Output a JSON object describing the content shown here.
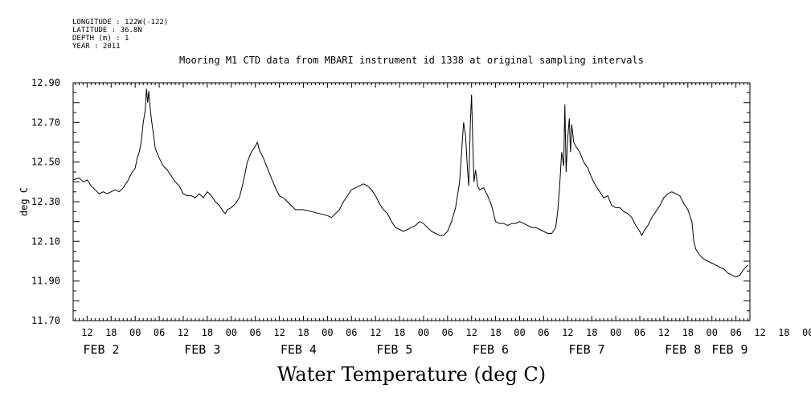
{
  "chart_data": {
    "type": "line",
    "title": "Mooring M1 CTD data from MBARI instrument id 1338 at original sampling intervals",
    "xlabel": "Water Temperature (deg C)",
    "ylabel": "deg C",
    "metadata_lines": [
      "LONGITUDE : 122W(-122)",
      "LATITUDE : 36.8N",
      "DEPTH (m) : 1",
      "YEAR : 2011"
    ],
    "x_unit": "hours since FEB 2 00:00, 2011",
    "xlim": [
      -15.5,
      153.5
    ],
    "ylim": [
      11.7,
      12.9
    ],
    "y_ticks": [
      "12.90",
      "12.70",
      "12.50",
      "12.30",
      "12.10",
      "11.90",
      "11.70"
    ],
    "hour_ticks": [
      "12",
      "18",
      "00",
      "06",
      "12",
      "18",
      "00",
      "06",
      "12",
      "18",
      "00",
      "06",
      "12",
      "18",
      "00",
      "06",
      "12",
      "18",
      "00",
      "06",
      "12",
      "18",
      "00",
      "06",
      "12",
      "18",
      "00",
      "06",
      "12",
      "18",
      "00",
      "06"
    ],
    "date_labels": [
      "FEB  2",
      "FEB  3",
      "FEB  4",
      "FEB  5",
      "FEB  6",
      "FEB  7",
      "FEB  8",
      "FEB  9"
    ],
    "grid": false,
    "series": [
      {
        "points": [
          [
            -15.5,
            12.41
          ],
          [
            -14,
            12.42
          ],
          [
            -13,
            12.4
          ],
          [
            -12,
            12.41
          ],
          [
            -11,
            12.38
          ],
          [
            -10,
            12.36
          ],
          [
            -9,
            12.34
          ],
          [
            -8,
            12.35
          ],
          [
            -7,
            12.34
          ],
          [
            -6,
            12.35
          ],
          [
            -5,
            12.36
          ],
          [
            -4,
            12.35
          ],
          [
            -3,
            12.37
          ],
          [
            -2,
            12.4
          ],
          [
            -1,
            12.44
          ],
          [
            0,
            12.47
          ],
          [
            0.5,
            12.52
          ],
          [
            1,
            12.55
          ],
          [
            1.5,
            12.6
          ],
          [
            2,
            12.7
          ],
          [
            2.5,
            12.76
          ],
          [
            2.8,
            12.87
          ],
          [
            3.1,
            12.8
          ],
          [
            3.4,
            12.86
          ],
          [
            3.7,
            12.78
          ],
          [
            4,
            12.72
          ],
          [
            4.5,
            12.65
          ],
          [
            5,
            12.57
          ],
          [
            6,
            12.52
          ],
          [
            7,
            12.48
          ],
          [
            8,
            12.46
          ],
          [
            9,
            12.43
          ],
          [
            10,
            12.4
          ],
          [
            11,
            12.38
          ],
          [
            12,
            12.34
          ],
          [
            13,
            12.33
          ],
          [
            14,
            12.33
          ],
          [
            15,
            12.32
          ],
          [
            16,
            12.34
          ],
          [
            17,
            12.32
          ],
          [
            18,
            12.35
          ],
          [
            19,
            12.33
          ],
          [
            20,
            12.3
          ],
          [
            21,
            12.28
          ],
          [
            22,
            12.25
          ],
          [
            22.5,
            12.24
          ],
          [
            23,
            12.26
          ],
          [
            24,
            12.27
          ],
          [
            25,
            12.29
          ],
          [
            26,
            12.32
          ],
          [
            27,
            12.4
          ],
          [
            28,
            12.5
          ],
          [
            29,
            12.55
          ],
          [
            30,
            12.58
          ],
          [
            30.5,
            12.6
          ],
          [
            31,
            12.56
          ],
          [
            32,
            12.52
          ],
          [
            33,
            12.47
          ],
          [
            34,
            12.42
          ],
          [
            35,
            12.37
          ],
          [
            36,
            12.33
          ],
          [
            37,
            12.32
          ],
          [
            38,
            12.3
          ],
          [
            39,
            12.28
          ],
          [
            40,
            12.26
          ],
          [
            42,
            12.26
          ],
          [
            44,
            12.25
          ],
          [
            46,
            12.24
          ],
          [
            48,
            12.23
          ],
          [
            49,
            12.22
          ],
          [
            50,
            12.24
          ],
          [
            51,
            12.26
          ],
          [
            52,
            12.3
          ],
          [
            53,
            12.33
          ],
          [
            54,
            12.36
          ],
          [
            55,
            12.37
          ],
          [
            56,
            12.38
          ],
          [
            57,
            12.39
          ],
          [
            58,
            12.38
          ],
          [
            59,
            12.36
          ],
          [
            60,
            12.33
          ],
          [
            61,
            12.29
          ],
          [
            62,
            12.26
          ],
          [
            63,
            12.24
          ],
          [
            64,
            12.2
          ],
          [
            65,
            12.17
          ],
          [
            66,
            12.16
          ],
          [
            67,
            12.15
          ],
          [
            68,
            12.16
          ],
          [
            69,
            12.17
          ],
          [
            70,
            12.18
          ],
          [
            71,
            12.2
          ],
          [
            72,
            12.19
          ],
          [
            73,
            12.17
          ],
          [
            74,
            12.15
          ],
          [
            75,
            12.14
          ],
          [
            76,
            12.13
          ],
          [
            77,
            12.13
          ],
          [
            78,
            12.15
          ],
          [
            79,
            12.2
          ],
          [
            80,
            12.27
          ],
          [
            81,
            12.4
          ],
          [
            81.5,
            12.55
          ],
          [
            82,
            12.7
          ],
          [
            82.5,
            12.63
          ],
          [
            83,
            12.45
          ],
          [
            83.3,
            12.38
          ],
          [
            83.7,
            12.7
          ],
          [
            84,
            12.84
          ],
          [
            84.3,
            12.6
          ],
          [
            84.6,
            12.4
          ],
          [
            85,
            12.46
          ],
          [
            85.5,
            12.38
          ],
          [
            86,
            12.36
          ],
          [
            87,
            12.37
          ],
          [
            88,
            12.33
          ],
          [
            89,
            12.28
          ],
          [
            90,
            12.2
          ],
          [
            91,
            12.19
          ],
          [
            92,
            12.19
          ],
          [
            93,
            12.18
          ],
          [
            94,
            12.19
          ],
          [
            95,
            12.19
          ],
          [
            96,
            12.2
          ],
          [
            97,
            12.19
          ],
          [
            98,
            12.18
          ],
          [
            99,
            12.17
          ],
          [
            100,
            12.17
          ],
          [
            101,
            12.16
          ],
          [
            102,
            12.15
          ],
          [
            103,
            12.14
          ],
          [
            104,
            12.14
          ],
          [
            105,
            12.17
          ],
          [
            105.5,
            12.25
          ],
          [
            106,
            12.38
          ],
          [
            106.5,
            12.55
          ],
          [
            107,
            12.48
          ],
          [
            107.3,
            12.79
          ],
          [
            107.6,
            12.45
          ],
          [
            108,
            12.62
          ],
          [
            108.4,
            12.72
          ],
          [
            108.7,
            12.55
          ],
          [
            109,
            12.69
          ],
          [
            109.5,
            12.6
          ],
          [
            110,
            12.58
          ],
          [
            111,
            12.55
          ],
          [
            112,
            12.5
          ],
          [
            113,
            12.47
          ],
          [
            114,
            12.42
          ],
          [
            115,
            12.38
          ],
          [
            116,
            12.35
          ],
          [
            117,
            12.32
          ],
          [
            118,
            12.33
          ],
          [
            119,
            12.28
          ],
          [
            120,
            12.27
          ],
          [
            121,
            12.27
          ],
          [
            122,
            12.25
          ],
          [
            123,
            12.24
          ],
          [
            124,
            12.22
          ],
          [
            125,
            12.18
          ],
          [
            126,
            12.15
          ],
          [
            126.5,
            12.13
          ],
          [
            127,
            12.15
          ],
          [
            128,
            12.18
          ],
          [
            129,
            12.22
          ],
          [
            130,
            12.25
          ],
          [
            131,
            12.28
          ],
          [
            132,
            12.32
          ],
          [
            133,
            12.34
          ],
          [
            134,
            12.35
          ],
          [
            135,
            12.34
          ],
          [
            136,
            12.33
          ],
          [
            137,
            12.29
          ],
          [
            138,
            12.26
          ],
          [
            139,
            12.2
          ],
          [
            139.5,
            12.1
          ],
          [
            140,
            12.06
          ],
          [
            141,
            12.03
          ],
          [
            142,
            12.01
          ],
          [
            143,
            12.0
          ],
          [
            144,
            11.99
          ],
          [
            145,
            11.98
          ],
          [
            146,
            11.97
          ],
          [
            147,
            11.96
          ],
          [
            148,
            11.94
          ],
          [
            149,
            11.93
          ],
          [
            150,
            11.92
          ],
          [
            151,
            11.93
          ],
          [
            152,
            11.96
          ],
          [
            153,
            11.98
          ]
        ]
      }
    ]
  }
}
